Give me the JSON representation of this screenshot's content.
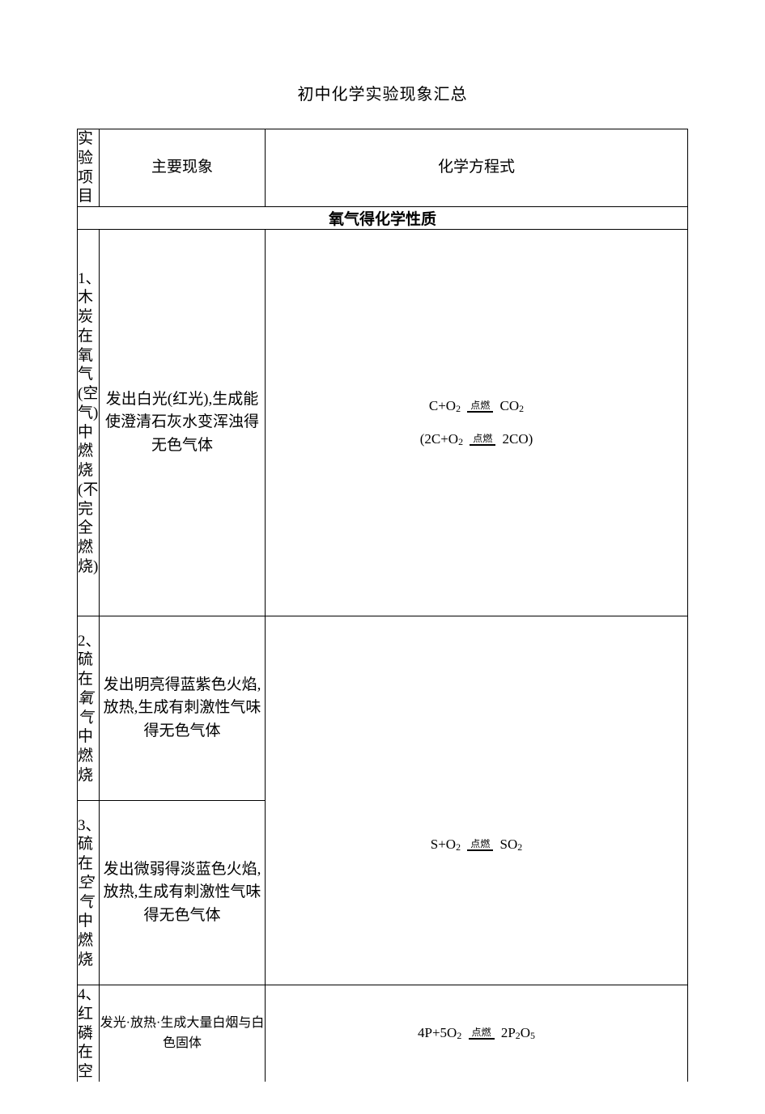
{
  "document": {
    "title": "初中化学实验现象汇总",
    "text_color": "#000000",
    "background_color": "#ffffff",
    "border_color": "#000000",
    "headers": {
      "col1": "实验项目",
      "col2": "主要现象",
      "col3": "化学方程式"
    },
    "section_header": "氧气得化学性质",
    "condition_label": "点燃",
    "rows": [
      {
        "num": "1、",
        "label_lines": [
          "木",
          "炭",
          "在",
          "氧",
          "气",
          "(空",
          "气)",
          "中",
          "燃",
          "烧",
          "(不",
          "完",
          "全",
          "燃",
          "烧)"
        ],
        "phenomenon": "发出白光(红光),生成能使澄清石灰水变浑浊得无色气体",
        "equation_main": {
          "lhs": "C+O",
          "lhs_sub": "2",
          "rhs_pre": " CO",
          "rhs_sub": "2"
        },
        "equation_alt": {
          "lhs": "(2C+O",
          "lhs_sub": "2",
          "rhs_pre": " 2CO)",
          "rhs_sub": ""
        }
      },
      {
        "num": "2、",
        "label_lines": [
          "硫",
          "在"
        ],
        "label_emph": "氧气",
        "label_tail": [
          "中",
          "燃",
          "烧"
        ],
        "phenomenon": "发出明亮得蓝紫色火焰,放热,生成有刺激性气味得无色气体"
      },
      {
        "num": "3、",
        "label_lines": [
          "硫",
          "在"
        ],
        "label_emph": "空气",
        "label_tail": [
          "中",
          "燃",
          "烧"
        ],
        "phenomenon": "发出微弱得淡蓝色火焰,放热,生成有刺激性气味得无色气体",
        "shared_equation": {
          "lhs": "S+O",
          "lhs_sub": "2",
          "rhs_pre": " SO",
          "rhs_sub": "2"
        }
      },
      {
        "num": "4、",
        "label_lines": [
          "红",
          "磷",
          "在",
          "空"
        ],
        "phenomenon": "发光·放热·生成大量白烟与白色固体",
        "equation_main": {
          "lhs": "4P+5O",
          "lhs_sub": "2",
          "rhs_pre": " 2P",
          "rhs_sub": "2",
          "rhs_pre2": "O",
          "rhs_sub2": "5"
        }
      }
    ]
  }
}
